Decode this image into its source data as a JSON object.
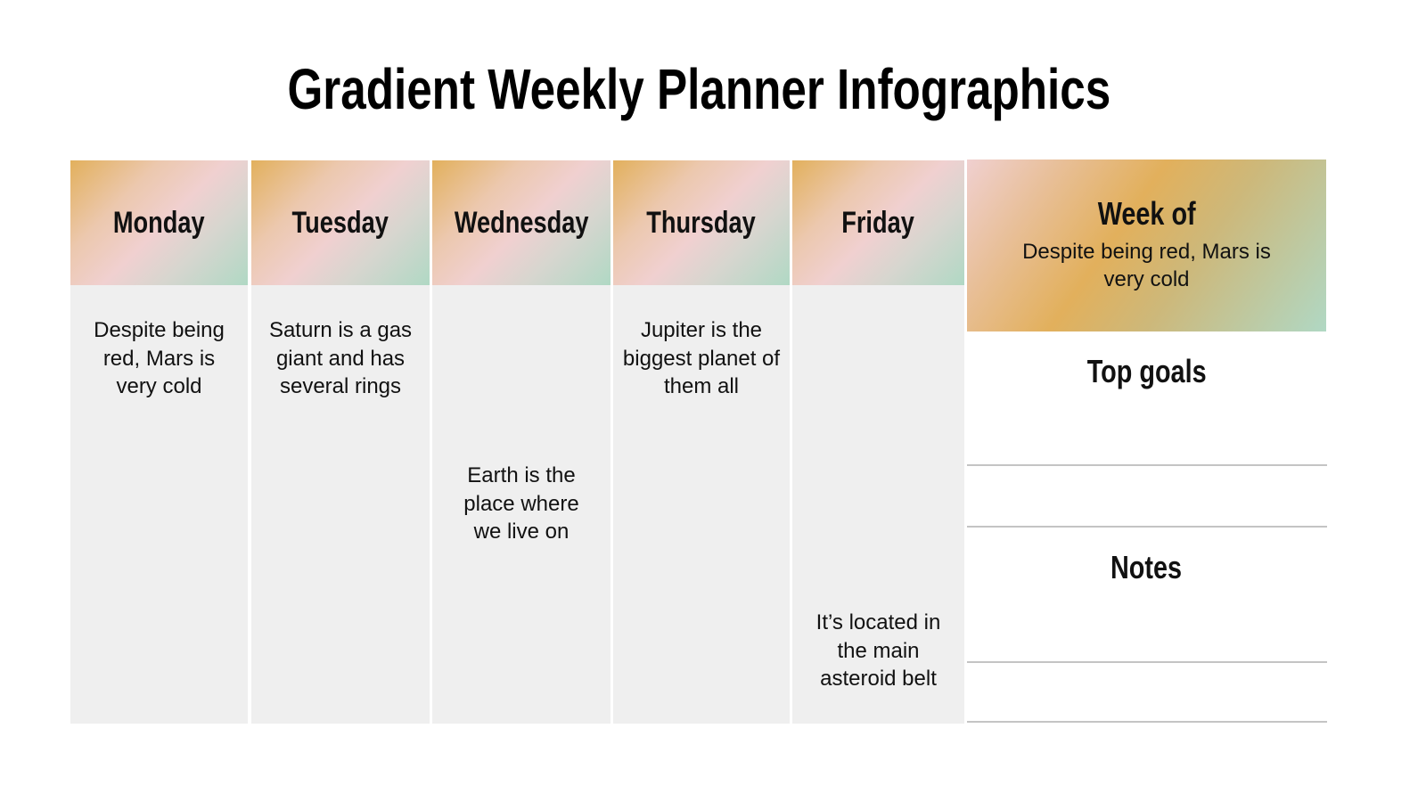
{
  "title": "Gradient Weekly Planner Infographics",
  "days": [
    {
      "name": "Monday",
      "text": "Despite being red, Mars is very cold"
    },
    {
      "name": "Tuesday",
      "text": "Saturn is a gas giant and has several rings"
    },
    {
      "name": "Wednesday",
      "text": "Earth is the place where we live on"
    },
    {
      "name": "Thursday",
      "text": "Jupiter is the biggest planet of them all"
    },
    {
      "name": "Friday",
      "text": "It’s located in the main asteroid belt"
    }
  ],
  "week": {
    "label": "Week of",
    "text": "Despite being red, Mars is very cold"
  },
  "top_goals": "Top goals",
  "notes": "Notes",
  "colors": {
    "gradient_gold": "#e2b05c",
    "gradient_pink": "#f0d0d0",
    "gradient_mint": "#b0d8c4",
    "column_bg": "#efefef"
  }
}
